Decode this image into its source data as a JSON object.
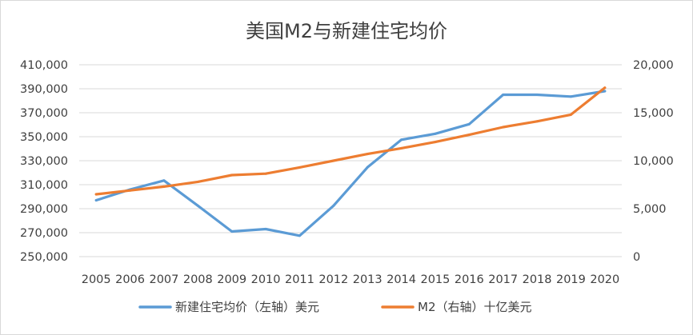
{
  "chart_data": {
    "type": "line",
    "title": "美国M2与新建住宅均价",
    "x": [
      "2005",
      "2006",
      "2007",
      "2008",
      "2009",
      "2010",
      "2011",
      "2012",
      "2013",
      "2014",
      "2015",
      "2016",
      "2017",
      "2018",
      "2019",
      "2020"
    ],
    "series": [
      {
        "name": "新建住宅均价（左轴）美元",
        "axis": "left",
        "color": "#5b9bd5",
        "values": [
          297000,
          306000,
          313500,
          292500,
          271000,
          273000,
          267500,
          292500,
          324500,
          347500,
          352500,
          360500,
          385000,
          385000,
          383500,
          388000
        ]
      },
      {
        "name": "M2（右轴）十亿美元",
        "axis": "right",
        "color": "#ed7d31",
        "values": [
          6500,
          6900,
          7300,
          7800,
          8500,
          8650,
          9300,
          10000,
          10700,
          11300,
          11950,
          12700,
          13500,
          14100,
          14800,
          17600
        ]
      }
    ],
    "y_left": {
      "min": 250000,
      "max": 410000,
      "step": 20000,
      "tick_labels": [
        "250,000",
        "270,000",
        "290,000",
        "310,000",
        "330,000",
        "350,000",
        "370,000",
        "390,000",
        "410,000"
      ]
    },
    "y_right": {
      "min": 0,
      "max": 20000,
      "step": 5000,
      "tick_labels": [
        "0",
        "5,000",
        "10,000",
        "15,000",
        "20,000"
      ]
    },
    "grid": true,
    "legend_position": "bottom"
  }
}
